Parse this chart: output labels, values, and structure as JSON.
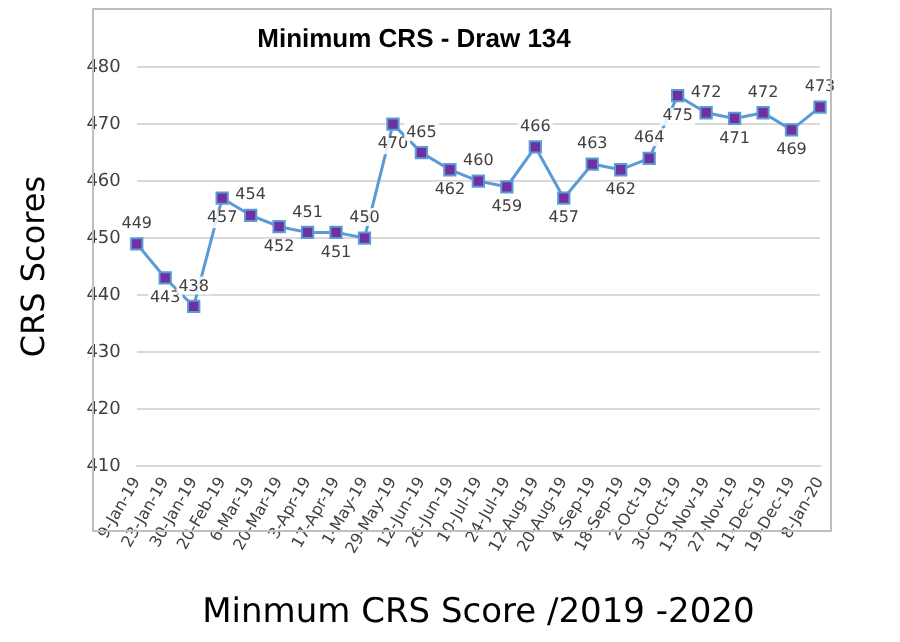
{
  "chart_data": {
    "type": "line",
    "title": "Minimum CRS - Draw 134",
    "xlabel": "Minmum CRS Score /2019 -2020",
    "ylabel": "CRS Scores",
    "categories": [
      "9-Jan-19",
      "23-Jan-19",
      "30-Jan-19",
      "20-Feb-19",
      "6-Mar-19",
      "20-Mar-19",
      "3-Apr-19",
      "17-Apr-19",
      "1-May-19",
      "29-May-19",
      "12-Jun-19",
      "26-Jun-19",
      "10-Jul-19",
      "24-Jul-19",
      "12-Aug-19",
      "20-Aug-19",
      "4-Sep-19",
      "18-Sep-19",
      "2-Oct-19",
      "30-Oct-19",
      "13-Nov-19",
      "27-Nov-19",
      "11-Dec-19",
      "19-Dec-19",
      "8-Jan-20"
    ],
    "series": [
      {
        "color": "#5b9bd5",
        "values": [
          449,
          443,
          438,
          457,
          454,
          452,
          451,
          451,
          450,
          470,
          465,
          462,
          460,
          459,
          466,
          457,
          463,
          462,
          464,
          475,
          472,
          471,
          472,
          469,
          473
        ]
      }
    ],
    "ylim": [
      410,
      480
    ],
    "yticks": [
      410,
      420,
      430,
      440,
      450,
      460,
      470,
      480
    ],
    "grid": "y",
    "marker": "square",
    "line_style": "solid",
    "data_labels": true,
    "legend": false
  }
}
